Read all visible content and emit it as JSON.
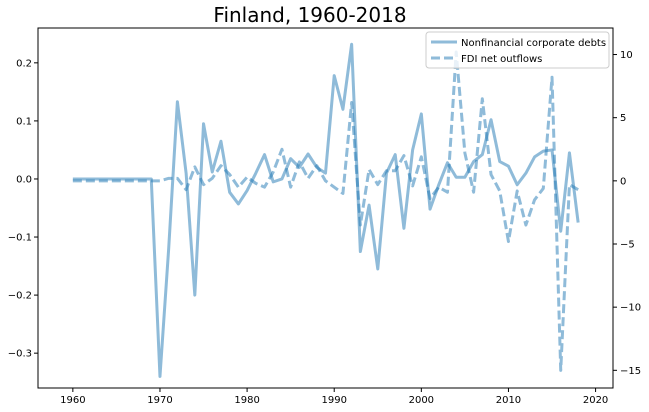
{
  "chart_data": {
    "type": "line",
    "title": "Finland, 1960-2018",
    "xlabel": "",
    "ylabel_left": "",
    "ylabel_right": "",
    "xlim": [
      1956,
      2022
    ],
    "ylim_left": [
      -0.36,
      0.26
    ],
    "ylim_right": [
      -16.4,
      12.1
    ],
    "x_ticks": [
      1960,
      1970,
      1980,
      1990,
      2000,
      2010,
      2020
    ],
    "y_ticks_left": [
      -0.3,
      -0.2,
      -0.1,
      0.0,
      0.1,
      0.2
    ],
    "y_ticks_right": [
      -15,
      -10,
      -5,
      0,
      5,
      10
    ],
    "grid": false,
    "legend_position": "top-right",
    "line_color": "#1f77b4",
    "series": [
      {
        "name": "Nonfinancial corporate debts",
        "axis": "left",
        "style": "solid",
        "x": [
          1960,
          1961,
          1962,
          1963,
          1964,
          1965,
          1966,
          1967,
          1968,
          1969,
          1970,
          1971,
          1972,
          1973,
          1974,
          1975,
          1976,
          1977,
          1978,
          1979,
          1980,
          1981,
          1982,
          1983,
          1984,
          1985,
          1986,
          1987,
          1988,
          1989,
          1990,
          1991,
          1992,
          1993,
          1994,
          1995,
          1996,
          1997,
          1998,
          1999,
          2000,
          2001,
          2002,
          2003,
          2004,
          2005,
          2006,
          2007,
          2008,
          2009,
          2010,
          2011,
          2012,
          2013,
          2014,
          2015,
          2016,
          2017,
          2018
        ],
        "values": [
          0.0,
          0.0,
          0.0,
          0.0,
          0.0,
          0.0,
          0.0,
          0.0,
          0.0,
          0.0,
          -0.34,
          -0.12,
          0.133,
          0.01,
          -0.2,
          0.095,
          0.012,
          0.065,
          -0.023,
          -0.043,
          -0.02,
          0.01,
          0.042,
          -0.005,
          0.0,
          0.035,
          0.02,
          0.043,
          0.02,
          0.01,
          0.178,
          0.12,
          0.232,
          -0.125,
          -0.045,
          -0.155,
          0.01,
          0.042,
          -0.085,
          0.05,
          0.112,
          -0.052,
          -0.01,
          0.028,
          0.003,
          0.003,
          0.03,
          0.042,
          0.102,
          0.03,
          0.022,
          -0.01,
          0.01,
          0.038,
          0.048,
          0.05,
          -0.09,
          0.045,
          -0.075
        ]
      },
      {
        "name": "FDI net outflows",
        "axis": "right",
        "style": "dashed",
        "x": [
          1960,
          1961,
          1962,
          1963,
          1964,
          1965,
          1966,
          1967,
          1968,
          1969,
          1970,
          1971,
          1972,
          1973,
          1974,
          1975,
          1976,
          1977,
          1978,
          1979,
          1980,
          1981,
          1982,
          1983,
          1984,
          1985,
          1986,
          1987,
          1988,
          1989,
          1990,
          1991,
          1992,
          1993,
          1994,
          1995,
          1996,
          1997,
          1998,
          1999,
          2000,
          2001,
          2002,
          2003,
          2004,
          2005,
          2006,
          2007,
          2008,
          2009,
          2010,
          2011,
          2012,
          2013,
          2014,
          2015,
          2016,
          2017,
          2018
        ],
        "values": [
          0.0,
          0.0,
          0.0,
          0.0,
          0.0,
          0.0,
          0.0,
          0.0,
          0.0,
          0.0,
          0.0,
          0.2,
          0.2,
          -0.7,
          1.1,
          -0.3,
          0.2,
          1.2,
          0.5,
          -0.5,
          0.3,
          -0.2,
          -0.5,
          0.7,
          2.5,
          -0.5,
          1.5,
          0.2,
          1.2,
          0.0,
          -0.5,
          -1.0,
          6.2,
          -3.5,
          0.9,
          -0.3,
          0.8,
          0.8,
          2.0,
          -0.4,
          1.9,
          -1.4,
          -0.5,
          -0.9,
          10.2,
          2.2,
          -0.9,
          6.5,
          0.5,
          -0.8,
          -4.8,
          -0.8,
          -3.5,
          -1.5,
          -0.6,
          8.2,
          -15.0,
          -0.3,
          -0.7
        ]
      }
    ]
  }
}
